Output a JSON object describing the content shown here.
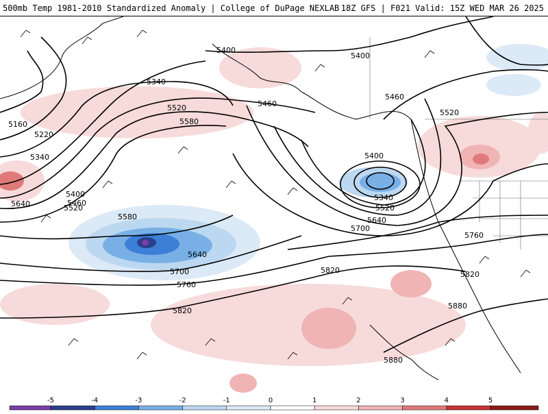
{
  "header": {
    "title": "500mb Temp 1981-2010 Standardized Anomaly | College of DuPage NEXLAB",
    "run_info": "18Z GFS | F021 Valid: 15Z WED MAR 26 2025"
  },
  "contour_labels": [
    "5400",
    "5340",
    "5160",
    "5220",
    "5340",
    "5400",
    "5460",
    "5520",
    "5640",
    "5520",
    "5580",
    "5460",
    "5400",
    "5460",
    "5520",
    "5580",
    "5340",
    "5400",
    "5520",
    "5640",
    "5700",
    "5760",
    "5640",
    "5700",
    "5760",
    "5820",
    "5820",
    "5880",
    "5820",
    "5880"
  ],
  "colorbar": {
    "ticks": [
      "-5",
      "-4",
      "-3",
      "-2",
      "-1",
      "0",
      "1",
      "2",
      "3",
      "4",
      "5"
    ],
    "colors": [
      "#7b3fa8",
      "#2c3f8c",
      "#3d7fd6",
      "#78b0e6",
      "#bcd8f0",
      "#dce9f6",
      "#ffffff",
      "#f7dada",
      "#f0b4b4",
      "#e07a7a",
      "#c83434",
      "#8c1a1a",
      "#e8a000"
    ]
  }
}
